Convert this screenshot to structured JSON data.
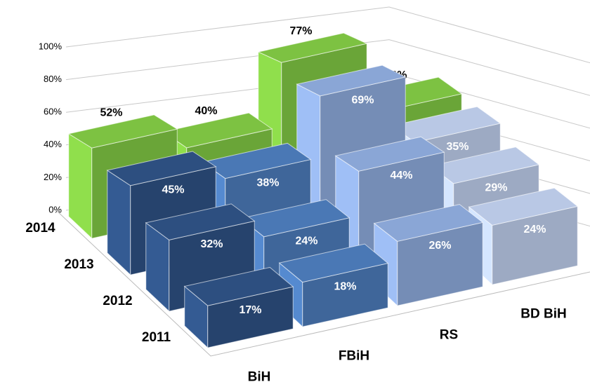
{
  "chart_data": {
    "type": "bar3d",
    "categories": [
      "BiH",
      "FBiH",
      "RS",
      "BD BiH"
    ],
    "series": [
      {
        "name": "2014",
        "color": "#7dc242",
        "label_color": "#000000",
        "values": [
          52,
          40,
          77,
          36
        ],
        "value_labels": [
          "52%",
          "40%",
          "77%",
          "36%"
        ]
      },
      {
        "name": "2013",
        "colors": [
          "#2d4f80",
          "#4a78b5",
          "#8aa6d6",
          "#b9c8e5"
        ],
        "label_color": "#ffffff",
        "values": [
          45,
          38,
          69,
          35
        ],
        "value_labels": [
          "45%",
          "38%",
          "69%",
          "35%"
        ]
      },
      {
        "name": "2012",
        "colors": [
          "#2d4f80",
          "#4a78b5",
          "#8aa6d6",
          "#b9c8e5"
        ],
        "label_color": "#ffffff",
        "values": [
          32,
          24,
          44,
          29
        ],
        "value_labels": [
          "32%",
          "24%",
          "44%",
          "29%"
        ]
      },
      {
        "name": "2011",
        "colors": [
          "#2d4f80",
          "#4a78b5",
          "#8aa6d6",
          "#b9c8e5"
        ],
        "label_color": "#ffffff",
        "values": [
          17,
          18,
          26,
          24
        ],
        "value_labels": [
          "17%",
          "18%",
          "26%",
          "24%"
        ]
      }
    ],
    "ylim": [
      0,
      100
    ],
    "yticks": [
      {
        "value": 0,
        "label": "0%"
      },
      {
        "value": 20,
        "label": "20%"
      },
      {
        "value": 40,
        "label": "40%"
      },
      {
        "value": 60,
        "label": "60%"
      },
      {
        "value": 80,
        "label": "80%"
      },
      {
        "value": 100,
        "label": "100%"
      }
    ],
    "grid": true
  }
}
